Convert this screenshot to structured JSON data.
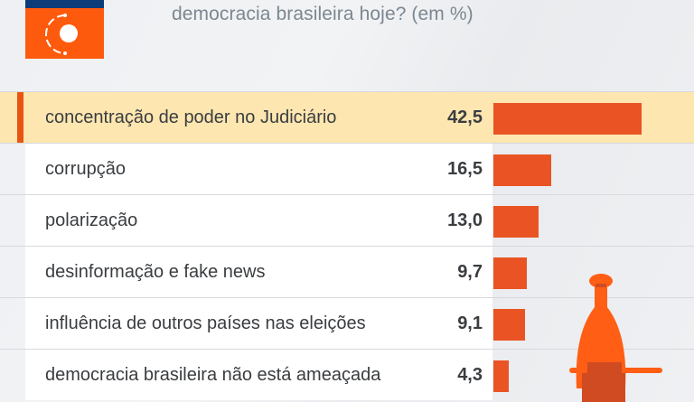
{
  "header": {
    "subtitle": "democracia brasileira hoje? (em %)",
    "logo_icon": "circles-orbit-logo-icon"
  },
  "colors": {
    "accent_orange": "#ea5424",
    "logo_orange": "#fe5a0d",
    "logo_blue": "#0d3c78",
    "highlight_row": "#fde6b0",
    "text": "#3a3d40",
    "subtitle": "#7b8791"
  },
  "rows": [
    {
      "label": "concentração de poder no Judiciário",
      "value": "42,5",
      "highlighted": true
    },
    {
      "label": "corrupção",
      "value": "16,5",
      "highlighted": false
    },
    {
      "label": "polarização",
      "value": "13,0",
      "highlighted": false
    },
    {
      "label": "desinformação e fake news",
      "value": "9,7",
      "highlighted": false
    },
    {
      "label": "influência de outros países nas eleições",
      "value": "9,1",
      "highlighted": false
    },
    {
      "label": "democracia brasileira não está ameaçada",
      "value": "4,3",
      "highlighted": false
    }
  ],
  "chart_data": {
    "type": "bar",
    "orientation": "horizontal",
    "title": "democracia brasileira hoje? (em %)",
    "categories": [
      "concentração de poder no Judiciário",
      "corrupção",
      "polarização",
      "desinformação e fake news",
      "influência de outros países nas eleições",
      "democracia brasileira não está ameaçada"
    ],
    "values": [
      42.5,
      16.5,
      13.0,
      9.7,
      9.1,
      4.3
    ],
    "xlabel": "",
    "ylabel": "",
    "unit": "%",
    "grid": false,
    "legend": null,
    "highlighted_category": "concentração de poder no Judiciário"
  }
}
